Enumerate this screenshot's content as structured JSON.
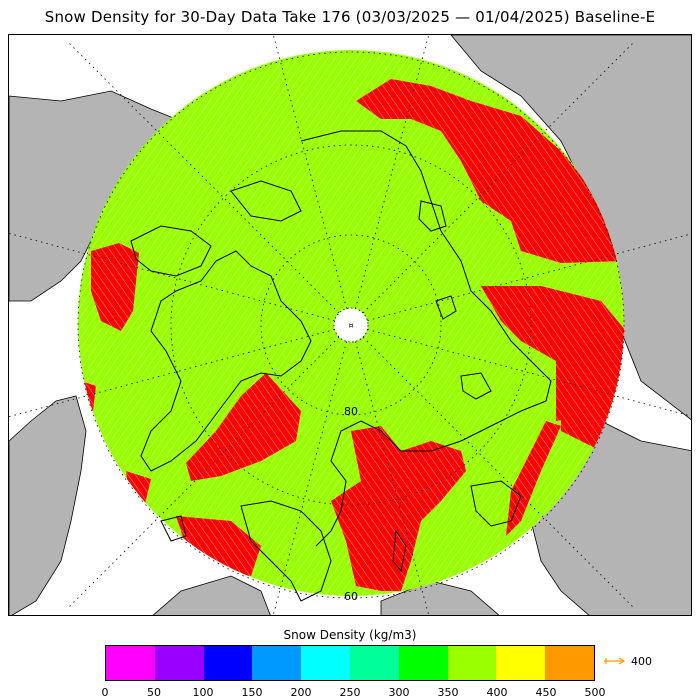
{
  "title": "Snow Density for 30-Day Data Take 176 (03/03/2025 — 01/04/2025) Baseline-E",
  "map": {
    "lat_labels": [
      "80",
      "60"
    ],
    "colors": {
      "ocean": "#ffffff",
      "land_outside": "#b4b4b4",
      "snow_330_400": "#99ff00",
      "snow_high": "#ff0000",
      "grid": "#000000",
      "coast": "#000000"
    }
  },
  "legend": {
    "title": "Snow Density (kg/m3)",
    "ticks": [
      "0",
      "50",
      "100",
      "150",
      "200",
      "250",
      "300",
      "350",
      "400",
      "450",
      "500"
    ],
    "colors": [
      "#ff00ff",
      "#9900ff",
      "#0000ff",
      "#0099ff",
      "#00ffff",
      "#00ff99",
      "#00ff00",
      "#99ff00",
      "#ffff00",
      "#ff9900"
    ],
    "overflow_label": "400",
    "overflow_color": "#ff9900"
  }
}
